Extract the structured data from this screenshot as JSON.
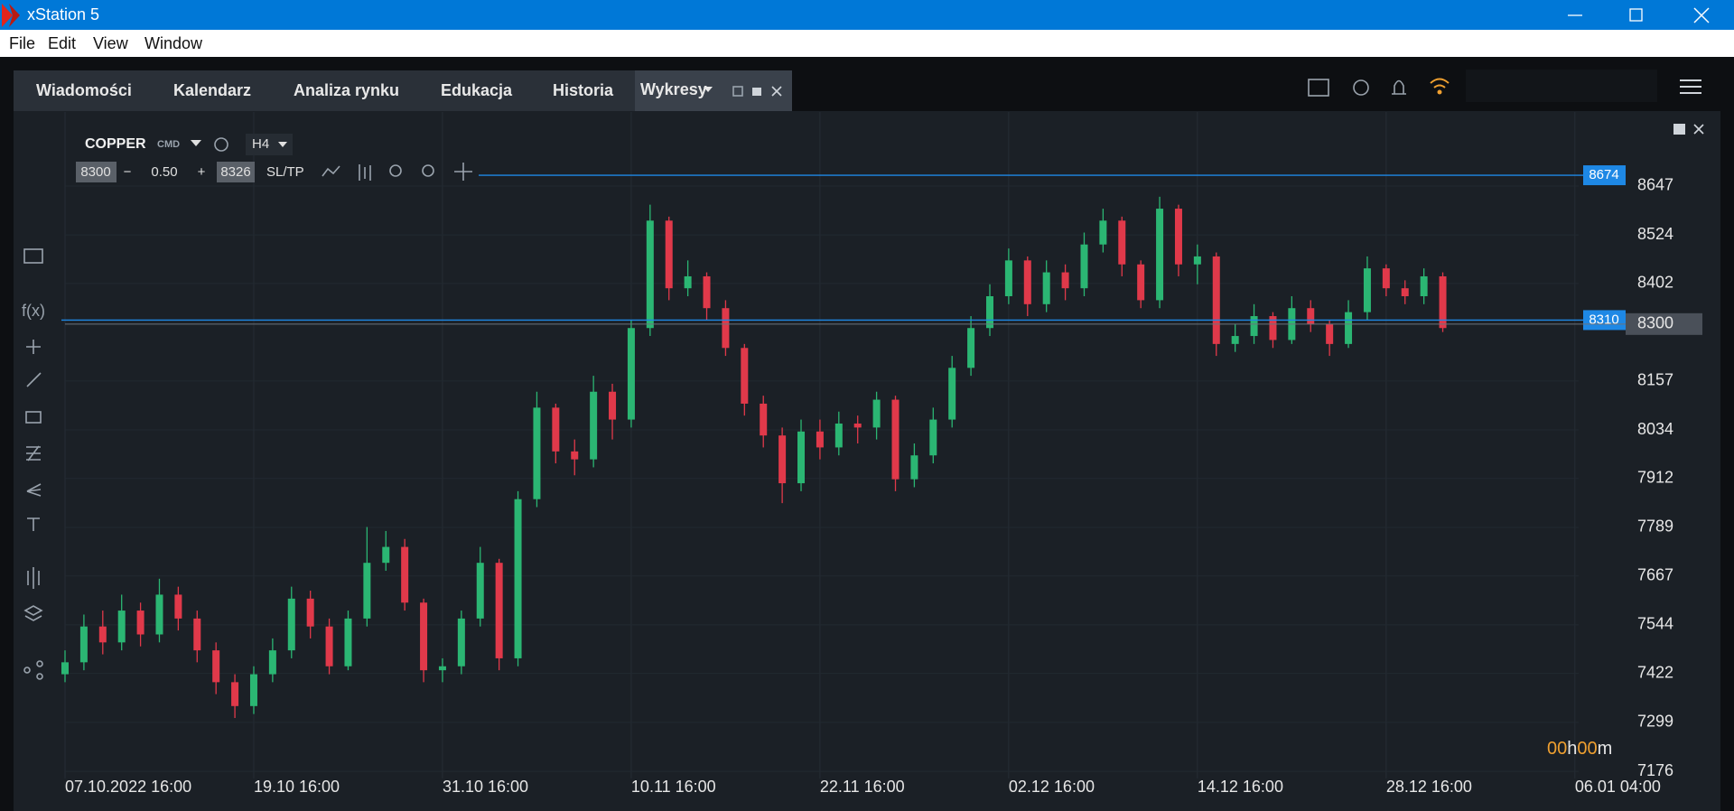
{
  "window": {
    "title": "xStation 5",
    "menu": [
      "File",
      "Edit",
      "View",
      "Window"
    ]
  },
  "tabs": [
    "Wiadomości",
    "Kalendarz",
    "Analiza rynku",
    "Edukacja",
    "Historia",
    "Wykresy"
  ],
  "toolbar": {
    "symbol": "COPPER",
    "market": "CMD",
    "interval": "H4",
    "sell_price": "8300",
    "minus": "−",
    "volume": "0.50",
    "plus": "+",
    "buy_price": "8326",
    "sltp": "SL/TP",
    "functions": "f(x)"
  },
  "chart_data": {
    "type": "candlestick",
    "up_color": "#2bb673",
    "down_color": "#e0394a",
    "x": [
      0,
      1,
      2,
      3,
      4,
      5,
      6,
      7,
      8,
      9,
      10,
      11,
      12,
      13,
      14,
      15,
      16,
      17,
      18,
      19,
      20,
      21,
      22,
      23,
      24,
      25,
      26,
      27,
      28,
      29,
      30,
      31,
      32,
      33,
      34,
      35,
      36,
      37,
      38,
      39,
      40,
      41,
      42,
      43,
      44,
      45,
      46,
      47,
      48,
      49,
      50,
      51,
      52,
      53,
      54,
      55,
      56,
      57,
      58,
      59,
      60,
      61,
      62,
      63,
      64,
      65,
      66,
      67,
      68,
      69,
      70,
      71,
      72,
      73
    ],
    "open": [
      7420,
      7450,
      7540,
      7500,
      7580,
      7520,
      7620,
      7560,
      7480,
      7400,
      7340,
      7420,
      7480,
      7610,
      7540,
      7440,
      7560,
      7700,
      7740,
      7600,
      7430,
      7440,
      7560,
      7700,
      7460,
      7860,
      8090,
      7980,
      7960,
      8130,
      8060,
      8290,
      8560,
      8390,
      8420,
      8340,
      8240,
      8100,
      8020,
      7900,
      8030,
      7990,
      8050,
      8040,
      8110,
      7910,
      7970,
      8060,
      8190,
      8290,
      8370,
      8460,
      8350,
      8430,
      8390,
      8500,
      8560,
      8450,
      8360,
      8590,
      8450,
      8470,
      8250,
      8270,
      8320,
      8260,
      8340,
      8300,
      8250,
      8330,
      8440,
      8390,
      8370,
      8420
    ],
    "high": [
      7480,
      7570,
      7580,
      7620,
      7600,
      7660,
      7640,
      7580,
      7500,
      7420,
      7440,
      7510,
      7640,
      7630,
      7560,
      7580,
      7790,
      7780,
      7760,
      7610,
      7460,
      7580,
      7740,
      7710,
      7880,
      8130,
      8100,
      8010,
      8170,
      8150,
      8310,
      8600,
      8570,
      8460,
      8430,
      8360,
      8250,
      8120,
      8040,
      8060,
      8060,
      8080,
      8070,
      8130,
      8120,
      8000,
      8090,
      8220,
      8320,
      8400,
      8490,
      8470,
      8460,
      8450,
      8530,
      8590,
      8570,
      8460,
      8620,
      8600,
      8500,
      8480,
      8300,
      8350,
      8330,
      8370,
      8360,
      8310,
      8360,
      8470,
      8450,
      8410,
      8440,
      8430
    ],
    "low": [
      7400,
      7430,
      7470,
      7480,
      7490,
      7500,
      7530,
      7450,
      7370,
      7310,
      7320,
      7400,
      7460,
      7510,
      7420,
      7430,
      7540,
      7680,
      7580,
      7400,
      7400,
      7420,
      7540,
      7430,
      7440,
      7840,
      7950,
      7920,
      7940,
      8010,
      8040,
      8270,
      8360,
      8370,
      8310,
      8220,
      8070,
      7990,
      7850,
      7880,
      7960,
      7970,
      8000,
      8010,
      7880,
      7890,
      7950,
      8040,
      8170,
      8270,
      8350,
      8320,
      8330,
      8360,
      8370,
      8480,
      8420,
      8340,
      8340,
      8420,
      8400,
      8220,
      8230,
      8250,
      8240,
      8250,
      8280,
      8220,
      8240,
      8310,
      8370,
      8350,
      8350,
      8280
    ],
    "close": [
      7450,
      7540,
      7500,
      7580,
      7520,
      7620,
      7560,
      7480,
      7400,
      7340,
      7420,
      7480,
      7610,
      7540,
      7440,
      7560,
      7700,
      7740,
      7600,
      7430,
      7440,
      7560,
      7700,
      7460,
      7860,
      8090,
      7980,
      7960,
      8130,
      8060,
      8290,
      8560,
      8390,
      8420,
      8340,
      8240,
      8100,
      8020,
      7900,
      8030,
      7990,
      8050,
      8040,
      8110,
      7910,
      7970,
      8060,
      8190,
      8290,
      8370,
      8460,
      8350,
      8430,
      8390,
      8500,
      8560,
      8450,
      8360,
      8590,
      8450,
      8470,
      8250,
      8270,
      8320,
      8260,
      8340,
      8300,
      8250,
      8330,
      8440,
      8390,
      8370,
      8420,
      8290
    ],
    "xlim": [
      0,
      80.2
    ],
    "xticks": [
      {
        "value": 0,
        "label": "07.10.2022 16:00"
      },
      {
        "value": 10,
        "label": "19.10 16:00"
      },
      {
        "value": 20,
        "label": "31.10 16:00"
      },
      {
        "value": 30,
        "label": "10.11 16:00"
      },
      {
        "value": 40,
        "label": "22.11 16:00"
      },
      {
        "value": 50,
        "label": "02.12 16:00"
      },
      {
        "value": 60,
        "label": "14.12 16:00"
      },
      {
        "value": 70,
        "label": "28.12 16:00"
      },
      {
        "value": 80,
        "label": "06.01 04:00"
      }
    ],
    "ylim": [
      7158,
      8833
    ],
    "yticks": [
      8647,
      8524,
      8402,
      8157,
      8034,
      7912,
      7789,
      7667,
      7544,
      7422,
      7299,
      7176
    ],
    "grid": true,
    "price_lines": [
      8674,
      8310
    ],
    "price_line_color": "#1e88e5",
    "last_price": 8300,
    "countdown": [
      "00",
      "h",
      "00",
      "m"
    ]
  }
}
